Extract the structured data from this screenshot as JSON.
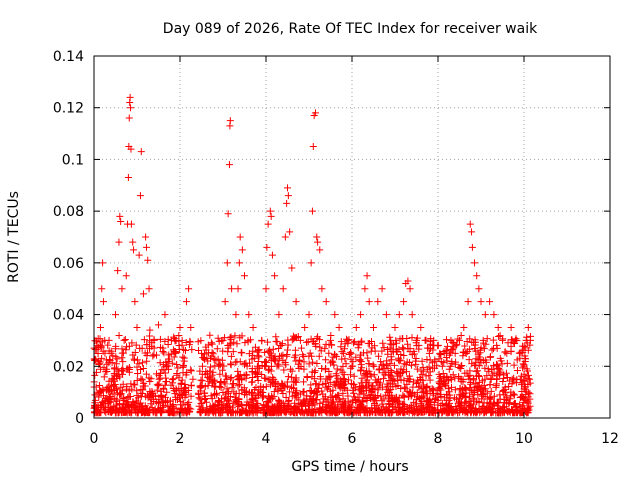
{
  "chart_data": {
    "type": "scatter",
    "title": "Day 089 of 2026, Rate Of TEC Index for receiver waik",
    "xlabel": "GPS time / hours",
    "ylabel": "ROTI / TECUs",
    "xlim": [
      0,
      12
    ],
    "ylim": [
      0,
      0.14
    ],
    "xticks": [
      0,
      2,
      4,
      6,
      8,
      10,
      12
    ],
    "xtick_labels": [
      "0",
      "2",
      "4",
      "6",
      "8",
      "10",
      "12"
    ],
    "yticks": [
      0,
      0.02,
      0.04,
      0.06,
      0.08,
      0.1,
      0.12,
      0.14
    ],
    "ytick_labels": [
      "0",
      "0.02",
      "0.04",
      "0.06",
      "0.08",
      "0.1",
      "0.12",
      "0.14"
    ],
    "grid": true,
    "marker": "+",
    "series": [
      {
        "name": "ROTI",
        "color": "#ff0000",
        "points": [
          [
            0.05,
            0.012
          ],
          [
            0.1,
            0.022
          ],
          [
            0.15,
            0.035
          ],
          [
            0.18,
            0.05
          ],
          [
            0.2,
            0.06
          ],
          [
            0.22,
            0.045
          ],
          [
            0.25,
            0.03
          ],
          [
            0.3,
            0.018
          ],
          [
            0.35,
            0.03
          ],
          [
            0.4,
            0.025
          ],
          [
            0.45,
            0.015
          ],
          [
            0.5,
            0.04
          ],
          [
            0.55,
            0.057
          ],
          [
            0.58,
            0.068
          ],
          [
            0.6,
            0.078
          ],
          [
            0.62,
            0.076
          ],
          [
            0.65,
            0.05
          ],
          [
            0.7,
            0.03
          ],
          [
            0.75,
            0.055
          ],
          [
            0.78,
            0.075
          ],
          [
            0.8,
            0.093
          ],
          [
            0.81,
            0.105
          ],
          [
            0.82,
            0.116
          ],
          [
            0.83,
            0.122
          ],
          [
            0.84,
            0.124
          ],
          [
            0.85,
            0.12
          ],
          [
            0.86,
            0.104
          ],
          [
            0.87,
            0.075
          ],
          [
            0.9,
            0.068
          ],
          [
            0.92,
            0.065
          ],
          [
            0.95,
            0.045
          ],
          [
            1.0,
            0.035
          ],
          [
            1.05,
            0.063
          ],
          [
            1.08,
            0.086
          ],
          [
            1.1,
            0.103
          ],
          [
            1.15,
            0.048
          ],
          [
            1.2,
            0.07
          ],
          [
            1.22,
            0.066
          ],
          [
            1.25,
            0.061
          ],
          [
            1.28,
            0.05
          ],
          [
            1.3,
            0.034
          ],
          [
            1.4,
            0.03
          ],
          [
            1.5,
            0.036
          ],
          [
            1.6,
            0.027
          ],
          [
            1.65,
            0.04
          ],
          [
            1.7,
            0.02
          ],
          [
            1.8,
            0.03
          ],
          [
            1.9,
            0.025
          ],
          [
            2.0,
            0.035
          ],
          [
            2.05,
            0.03
          ],
          [
            2.1,
            0.022
          ],
          [
            2.15,
            0.045
          ],
          [
            2.2,
            0.05
          ],
          [
            2.25,
            0.035
          ],
          [
            2.3,
            0.015
          ],
          [
            2.5,
            0.025
          ],
          [
            2.6,
            0.018
          ],
          [
            2.7,
            0.015
          ],
          [
            2.8,
            0.012
          ],
          [
            2.9,
            0.02
          ],
          [
            3.0,
            0.03
          ],
          [
            3.05,
            0.045
          ],
          [
            3.1,
            0.06
          ],
          [
            3.12,
            0.079
          ],
          [
            3.15,
            0.098
          ],
          [
            3.16,
            0.113
          ],
          [
            3.17,
            0.115
          ],
          [
            3.2,
            0.05
          ],
          [
            3.3,
            0.04
          ],
          [
            3.35,
            0.05
          ],
          [
            3.38,
            0.06
          ],
          [
            3.4,
            0.07
          ],
          [
            3.45,
            0.065
          ],
          [
            3.5,
            0.055
          ],
          [
            3.6,
            0.04
          ],
          [
            3.7,
            0.035
          ],
          [
            3.8,
            0.02
          ],
          [
            3.9,
            0.03
          ],
          [
            4.0,
            0.05
          ],
          [
            4.02,
            0.066
          ],
          [
            4.05,
            0.075
          ],
          [
            4.1,
            0.08
          ],
          [
            4.12,
            0.078
          ],
          [
            4.15,
            0.063
          ],
          [
            4.2,
            0.055
          ],
          [
            4.3,
            0.04
          ],
          [
            4.4,
            0.05
          ],
          [
            4.45,
            0.07
          ],
          [
            4.48,
            0.083
          ],
          [
            4.5,
            0.089
          ],
          [
            4.52,
            0.086
          ],
          [
            4.55,
            0.072
          ],
          [
            4.6,
            0.058
          ],
          [
            4.7,
            0.045
          ],
          [
            4.8,
            0.03
          ],
          [
            4.9,
            0.035
          ],
          [
            5.0,
            0.04
          ],
          [
            5.05,
            0.06
          ],
          [
            5.08,
            0.08
          ],
          [
            5.1,
            0.105
          ],
          [
            5.12,
            0.117
          ],
          [
            5.15,
            0.118
          ],
          [
            5.18,
            0.07
          ],
          [
            5.2,
            0.068
          ],
          [
            5.25,
            0.065
          ],
          [
            5.3,
            0.05
          ],
          [
            5.4,
            0.045
          ],
          [
            5.5,
            0.03
          ],
          [
            5.6,
            0.04
          ],
          [
            5.7,
            0.035
          ],
          [
            5.8,
            0.025
          ],
          [
            5.9,
            0.03
          ],
          [
            6.0,
            0.02
          ],
          [
            6.1,
            0.035
          ],
          [
            6.2,
            0.04
          ],
          [
            6.3,
            0.05
          ],
          [
            6.35,
            0.055
          ],
          [
            6.4,
            0.045
          ],
          [
            6.5,
            0.035
          ],
          [
            6.6,
            0.045
          ],
          [
            6.7,
            0.05
          ],
          [
            6.8,
            0.04
          ],
          [
            6.9,
            0.03
          ],
          [
            7.0,
            0.035
          ],
          [
            7.1,
            0.04
          ],
          [
            7.2,
            0.045
          ],
          [
            7.25,
            0.052
          ],
          [
            7.3,
            0.053
          ],
          [
            7.35,
            0.05
          ],
          [
            7.4,
            0.04
          ],
          [
            7.5,
            0.03
          ],
          [
            7.6,
            0.035
          ],
          [
            7.7,
            0.03
          ],
          [
            7.8,
            0.025
          ],
          [
            7.9,
            0.03
          ],
          [
            8.0,
            0.028
          ],
          [
            8.1,
            0.02
          ],
          [
            8.2,
            0.025
          ],
          [
            8.3,
            0.03
          ],
          [
            8.4,
            0.025
          ],
          [
            8.5,
            0.03
          ],
          [
            8.6,
            0.035
          ],
          [
            8.7,
            0.045
          ],
          [
            8.75,
            0.075
          ],
          [
            8.78,
            0.072
          ],
          [
            8.8,
            0.066
          ],
          [
            8.85,
            0.06
          ],
          [
            8.9,
            0.055
          ],
          [
            8.95,
            0.05
          ],
          [
            9.0,
            0.045
          ],
          [
            9.05,
            0.03
          ],
          [
            9.1,
            0.04
          ],
          [
            9.2,
            0.045
          ],
          [
            9.3,
            0.04
          ],
          [
            9.4,
            0.035
          ],
          [
            9.5,
            0.03
          ],
          [
            9.6,
            0.025
          ],
          [
            9.7,
            0.035
          ],
          [
            9.8,
            0.03
          ],
          [
            9.9,
            0.025
          ],
          [
            10.0,
            0.02
          ],
          [
            10.05,
            0.03
          ],
          [
            10.1,
            0.035
          ],
          [
            10.15,
            0.03
          ]
        ]
      }
    ]
  }
}
